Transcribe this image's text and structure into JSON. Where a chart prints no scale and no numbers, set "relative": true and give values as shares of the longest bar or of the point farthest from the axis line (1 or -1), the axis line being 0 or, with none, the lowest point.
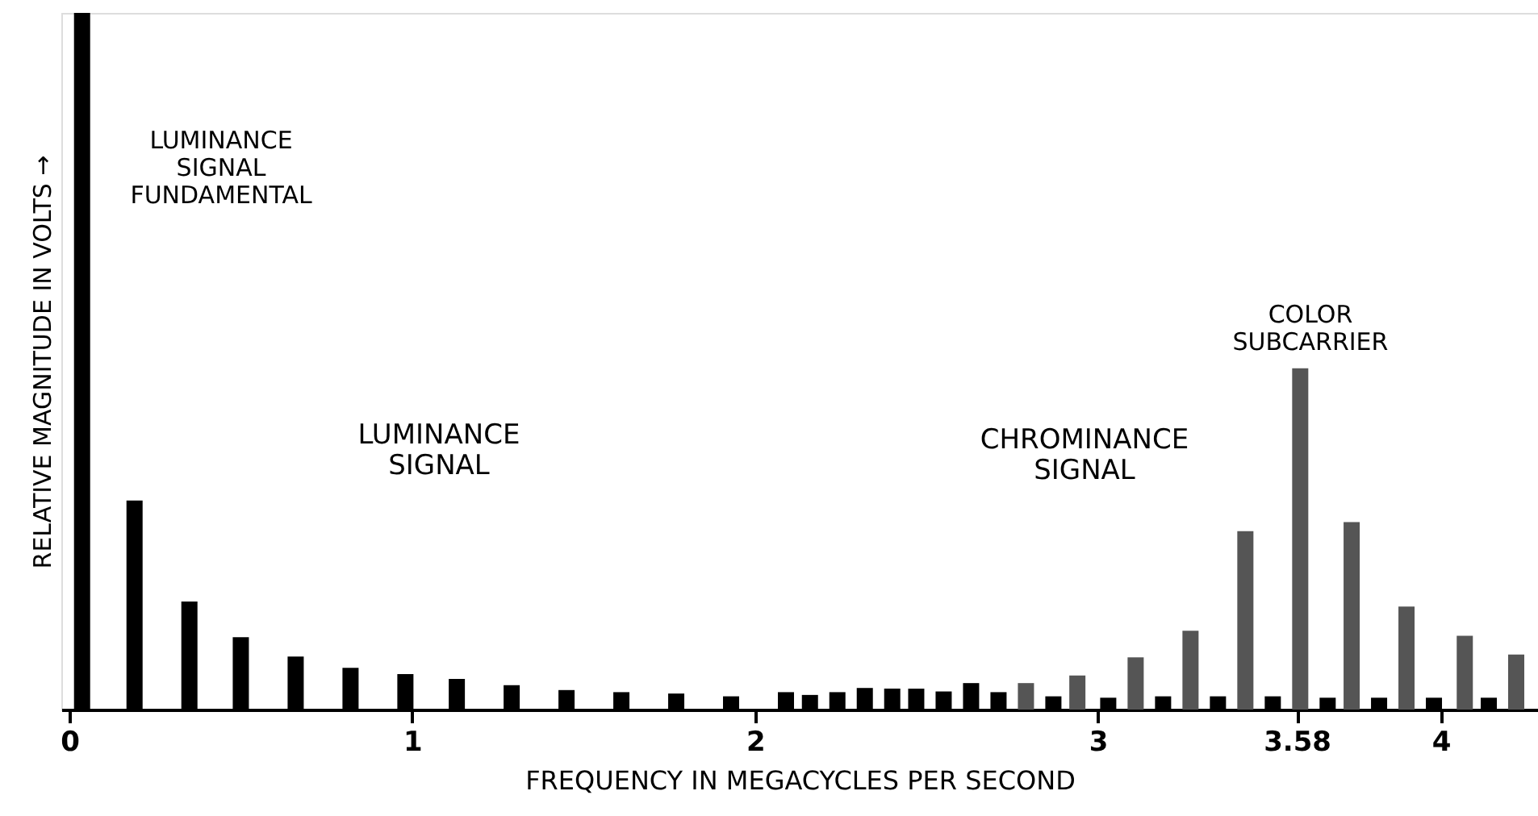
{
  "chart_data": {
    "type": "bar",
    "relative": true,
    "xlabel": "FREQUENCY IN MEGACYCLES PER SECOND",
    "ylabel": "RELATIVE MAGNITUDE IN VOLTS →",
    "xlim": [
      0,
      4.26
    ],
    "xticks": [
      0,
      1,
      2,
      3,
      {
        "value": 3.58,
        "label": "3.58"
      },
      4
    ],
    "grid": false,
    "series": [
      {
        "color": "#000000",
        "x": [
          0.037,
          0.19,
          0.35,
          0.5,
          0.66,
          0.82,
          0.98,
          1.13,
          1.29,
          1.45,
          1.61,
          1.77,
          1.93,
          2.09,
          2.16,
          2.24,
          2.32,
          2.4,
          2.47,
          2.55,
          2.63,
          2.71,
          2.87,
          3.03,
          3.19,
          3.35,
          3.51,
          3.67,
          3.82,
          3.98,
          4.14
        ],
        "values": [
          1,
          0.3,
          0.155,
          0.104,
          0.076,
          0.06,
          0.051,
          0.044,
          0.035,
          0.028,
          0.025,
          0.023,
          0.019,
          0.025,
          0.021,
          0.025,
          0.031,
          0.03,
          0.03,
          0.026,
          0.038,
          0.025,
          0.019,
          0.017,
          0.019,
          0.019,
          0.019,
          0.017,
          0.017,
          0.017,
          0.017
        ]
      },
      {
        "color": "#555555",
        "x": [
          2.79,
          2.94,
          3.11,
          3.27,
          3.43,
          3.59,
          3.74,
          3.9,
          4.07,
          4.22
        ],
        "values": [
          0.038,
          0.049,
          0.075,
          0.113,
          0.256,
          0.49,
          0.269,
          0.148,
          0.106,
          0.079
        ]
      }
    ],
    "annotations": [
      "LUMINANCE\nSIGNAL\nFUNDAMENTAL",
      "LUMINANCE\nSIGNAL",
      "CHROMINANCE\nSIGNAL",
      "COLOR\nSUBCARRIER"
    ]
  }
}
